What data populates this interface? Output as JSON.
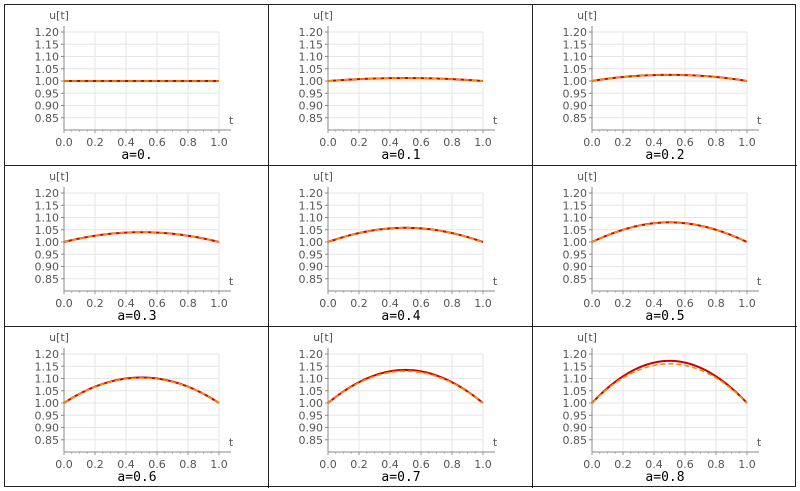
{
  "chart_data": [
    {
      "type": "line",
      "title": "a=0.",
      "xlabel": "t",
      "ylabel": "u[t]",
      "xlim": [
        0,
        1
      ],
      "ylim": [
        0.8,
        1.2
      ],
      "x_ticks": [
        "0.0",
        "0.2",
        "0.4",
        "0.6",
        "0.8",
        "1.0"
      ],
      "y_ticks": [
        "0.85",
        "0.90",
        "0.95",
        "1.00",
        "1.05",
        "1.10",
        "1.15",
        "1.20"
      ],
      "grid": true,
      "series": [
        {
          "color": "#cc0000",
          "style": "solid",
          "x": [
            0,
            0.25,
            0.5,
            0.75,
            1
          ],
          "y": [
            1.0,
            1.0,
            1.0,
            1.0,
            1.0
          ]
        },
        {
          "color": "#ff8c00",
          "style": "dashed",
          "x": [
            0,
            0.25,
            0.5,
            0.75,
            1
          ],
          "y": [
            1.0,
            1.0,
            1.0,
            1.0,
            1.0
          ]
        }
      ]
    },
    {
      "type": "line",
      "title": "a=0.1",
      "xlabel": "t",
      "ylabel": "u[t]",
      "xlim": [
        0,
        1
      ],
      "ylim": [
        0.8,
        1.2
      ],
      "x_ticks": [
        "0.0",
        "0.2",
        "0.4",
        "0.6",
        "0.8",
        "1.0"
      ],
      "y_ticks": [
        "0.85",
        "0.90",
        "0.95",
        "1.00",
        "1.05",
        "1.10",
        "1.15",
        "1.20"
      ],
      "grid": true,
      "series": [
        {
          "color": "#cc0000",
          "style": "solid",
          "x": [
            0,
            0.25,
            0.5,
            0.75,
            1
          ],
          "y": [
            1.0,
            1.009,
            1.012,
            1.009,
            1.0
          ]
        },
        {
          "color": "#ff8c00",
          "style": "dashed",
          "x": [
            0,
            0.25,
            0.5,
            0.75,
            1
          ],
          "y": [
            1.0,
            1.009,
            1.012,
            1.009,
            1.0
          ]
        }
      ]
    },
    {
      "type": "line",
      "title": "a=0.2",
      "xlabel": "t",
      "ylabel": "u[t]",
      "xlim": [
        0,
        1
      ],
      "ylim": [
        0.8,
        1.2
      ],
      "x_ticks": [
        "0.0",
        "0.2",
        "0.4",
        "0.6",
        "0.8",
        "1.0"
      ],
      "y_ticks": [
        "0.85",
        "0.90",
        "0.95",
        "1.00",
        "1.05",
        "1.10",
        "1.15",
        "1.20"
      ],
      "grid": true,
      "series": [
        {
          "color": "#cc0000",
          "style": "solid",
          "x": [
            0,
            0.25,
            0.5,
            0.75,
            1
          ],
          "y": [
            1.0,
            1.019,
            1.025,
            1.019,
            1.0
          ]
        },
        {
          "color": "#ff8c00",
          "style": "dashed",
          "x": [
            0,
            0.25,
            0.5,
            0.75,
            1
          ],
          "y": [
            1.0,
            1.019,
            1.025,
            1.019,
            1.0
          ]
        }
      ]
    },
    {
      "type": "line",
      "title": "a=0.3",
      "xlabel": "t",
      "ylabel": "u[t]",
      "xlim": [
        0,
        1
      ],
      "ylim": [
        0.8,
        1.2
      ],
      "x_ticks": [
        "0.0",
        "0.2",
        "0.4",
        "0.6",
        "0.8",
        "1.0"
      ],
      "y_ticks": [
        "0.85",
        "0.90",
        "0.95",
        "1.00",
        "1.05",
        "1.10",
        "1.15",
        "1.20"
      ],
      "grid": true,
      "series": [
        {
          "color": "#cc0000",
          "style": "solid",
          "x": [
            0,
            0.25,
            0.5,
            0.75,
            1
          ],
          "y": [
            1.0,
            1.03,
            1.04,
            1.03,
            1.0
          ]
        },
        {
          "color": "#ff8c00",
          "style": "dashed",
          "x": [
            0,
            0.25,
            0.5,
            0.75,
            1
          ],
          "y": [
            1.0,
            1.03,
            1.04,
            1.03,
            1.0
          ]
        }
      ]
    },
    {
      "type": "line",
      "title": "a=0.4",
      "xlabel": "t",
      "ylabel": "u[t]",
      "xlim": [
        0,
        1
      ],
      "ylim": [
        0.8,
        1.2
      ],
      "x_ticks": [
        "0.0",
        "0.2",
        "0.4",
        "0.6",
        "0.8",
        "1.0"
      ],
      "y_ticks": [
        "0.85",
        "0.90",
        "0.95",
        "1.00",
        "1.05",
        "1.10",
        "1.15",
        "1.20"
      ],
      "grid": true,
      "series": [
        {
          "color": "#cc0000",
          "style": "solid",
          "x": [
            0,
            0.25,
            0.5,
            0.75,
            1
          ],
          "y": [
            1.0,
            1.043,
            1.058,
            1.043,
            1.0
          ]
        },
        {
          "color": "#ff8c00",
          "style": "dashed",
          "x": [
            0,
            0.25,
            0.5,
            0.75,
            1
          ],
          "y": [
            1.0,
            1.043,
            1.058,
            1.043,
            1.0
          ]
        }
      ]
    },
    {
      "type": "line",
      "title": "a=0.5",
      "xlabel": "t",
      "ylabel": "u[t]",
      "xlim": [
        0,
        1
      ],
      "ylim": [
        0.8,
        1.2
      ],
      "x_ticks": [
        "0.0",
        "0.2",
        "0.4",
        "0.6",
        "0.8",
        "1.0"
      ],
      "y_ticks": [
        "0.85",
        "0.90",
        "0.95",
        "1.00",
        "1.05",
        "1.10",
        "1.15",
        "1.20"
      ],
      "grid": true,
      "series": [
        {
          "color": "#cc0000",
          "style": "solid",
          "x": [
            0,
            0.25,
            0.5,
            0.75,
            1
          ],
          "y": [
            1.0,
            1.059,
            1.08,
            1.059,
            1.0
          ]
        },
        {
          "color": "#ff8c00",
          "style": "dashed",
          "x": [
            0,
            0.25,
            0.5,
            0.75,
            1
          ],
          "y": [
            1.0,
            1.059,
            1.079,
            1.059,
            1.0
          ]
        }
      ]
    },
    {
      "type": "line",
      "title": "a=0.6",
      "xlabel": "t",
      "ylabel": "u[t]",
      "xlim": [
        0,
        1
      ],
      "ylim": [
        0.8,
        1.2
      ],
      "x_ticks": [
        "0.0",
        "0.2",
        "0.4",
        "0.6",
        "0.8",
        "1.0"
      ],
      "y_ticks": [
        "0.85",
        "0.90",
        "0.95",
        "1.00",
        "1.05",
        "1.10",
        "1.15",
        "1.20"
      ],
      "grid": true,
      "series": [
        {
          "color": "#cc0000",
          "style": "solid",
          "x": [
            0,
            0.25,
            0.5,
            0.75,
            1
          ],
          "y": [
            1.0,
            1.078,
            1.104,
            1.078,
            1.0
          ]
        },
        {
          "color": "#ff8c00",
          "style": "dashed",
          "x": [
            0,
            0.25,
            0.5,
            0.75,
            1
          ],
          "y": [
            1.0,
            1.077,
            1.102,
            1.077,
            1.0
          ]
        }
      ]
    },
    {
      "type": "line",
      "title": "a=0.7",
      "xlabel": "t",
      "ylabel": "u[t]",
      "xlim": [
        0,
        1
      ],
      "ylim": [
        0.8,
        1.2
      ],
      "x_ticks": [
        "0.0",
        "0.2",
        "0.4",
        "0.6",
        "0.8",
        "1.0"
      ],
      "y_ticks": [
        "0.85",
        "0.90",
        "0.95",
        "1.00",
        "1.05",
        "1.10",
        "1.15",
        "1.20"
      ],
      "grid": true,
      "series": [
        {
          "color": "#cc0000",
          "style": "solid",
          "x": [
            0,
            0.25,
            0.5,
            0.75,
            1
          ],
          "y": [
            1.0,
            1.1,
            1.135,
            1.1,
            1.0
          ]
        },
        {
          "color": "#ff8c00",
          "style": "dashed",
          "x": [
            0,
            0.25,
            0.5,
            0.75,
            1
          ],
          "y": [
            1.0,
            1.097,
            1.13,
            1.097,
            1.0
          ]
        }
      ]
    },
    {
      "type": "line",
      "title": "a=0.8",
      "xlabel": "t",
      "ylabel": "u[t]",
      "xlim": [
        0,
        1
      ],
      "ylim": [
        0.8,
        1.2
      ],
      "x_ticks": [
        "0.0",
        "0.2",
        "0.4",
        "0.6",
        "0.8",
        "1.0"
      ],
      "y_ticks": [
        "0.85",
        "0.90",
        "0.95",
        "1.00",
        "1.05",
        "1.10",
        "1.15",
        "1.20"
      ],
      "grid": true,
      "series": [
        {
          "color": "#cc0000",
          "style": "solid",
          "x": [
            0,
            0.25,
            0.5,
            0.75,
            1
          ],
          "y": [
            1.0,
            1.128,
            1.172,
            1.128,
            1.0
          ]
        },
        {
          "color": "#ff8c00",
          "style": "dashed",
          "x": [
            0,
            0.25,
            0.5,
            0.75,
            1
          ],
          "y": [
            1.0,
            1.12,
            1.16,
            1.12,
            1.0
          ]
        }
      ]
    }
  ]
}
